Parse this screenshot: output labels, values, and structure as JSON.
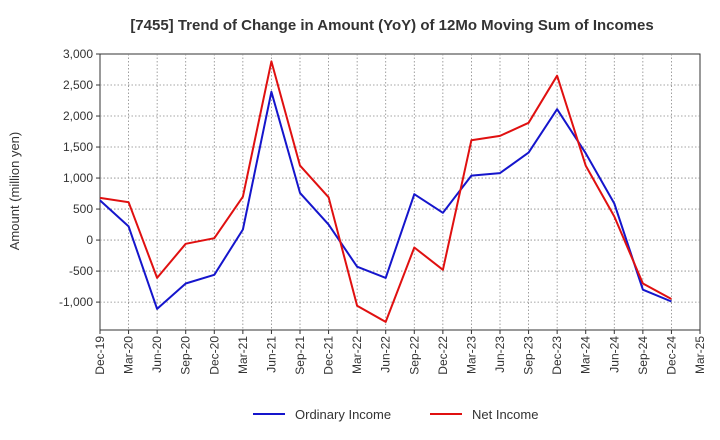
{
  "chart_data": {
    "type": "line",
    "title": "[7455]  Trend of Change in Amount (YoY) of 12Mo Moving Sum of Incomes",
    "xlabel": "",
    "ylabel": "Amount (million yen)",
    "ylim": [
      -1450,
      3000
    ],
    "yticks": [
      3000,
      2500,
      2000,
      1500,
      1000,
      500,
      0,
      -500,
      -1000
    ],
    "ytick_labels": [
      "3,000",
      "2,500",
      "2,000",
      "1,500",
      "1,000",
      "500",
      "0",
      "-500",
      "-1,000"
    ],
    "categories": [
      "Dec-19",
      "Mar-20",
      "Jun-20",
      "Sep-20",
      "Dec-20",
      "Mar-21",
      "Jun-21",
      "Sep-21",
      "Dec-21",
      "Mar-22",
      "Jun-22",
      "Sep-22",
      "Dec-22",
      "Mar-23",
      "Jun-23",
      "Sep-23",
      "Dec-23",
      "Mar-24",
      "Jun-24",
      "Sep-24",
      "Dec-24",
      "Mar-25"
    ],
    "grid": true,
    "legend_position": "bottom",
    "series": [
      {
        "name": "Ordinary Income",
        "color": "#1515cc",
        "values": [
          640,
          220,
          -1110,
          -700,
          -560,
          170,
          2390,
          760,
          250,
          -430,
          -610,
          740,
          440,
          1040,
          1080,
          1410,
          2110,
          1400,
          590,
          -800,
          -990,
          null
        ]
      },
      {
        "name": "Net Income",
        "color": "#e01010",
        "values": [
          680,
          610,
          -610,
          -60,
          30,
          700,
          2880,
          1200,
          690,
          -1060,
          -1320,
          -120,
          -480,
          1610,
          1680,
          1890,
          2650,
          1200,
          380,
          -700,
          -950,
          null
        ]
      }
    ]
  }
}
